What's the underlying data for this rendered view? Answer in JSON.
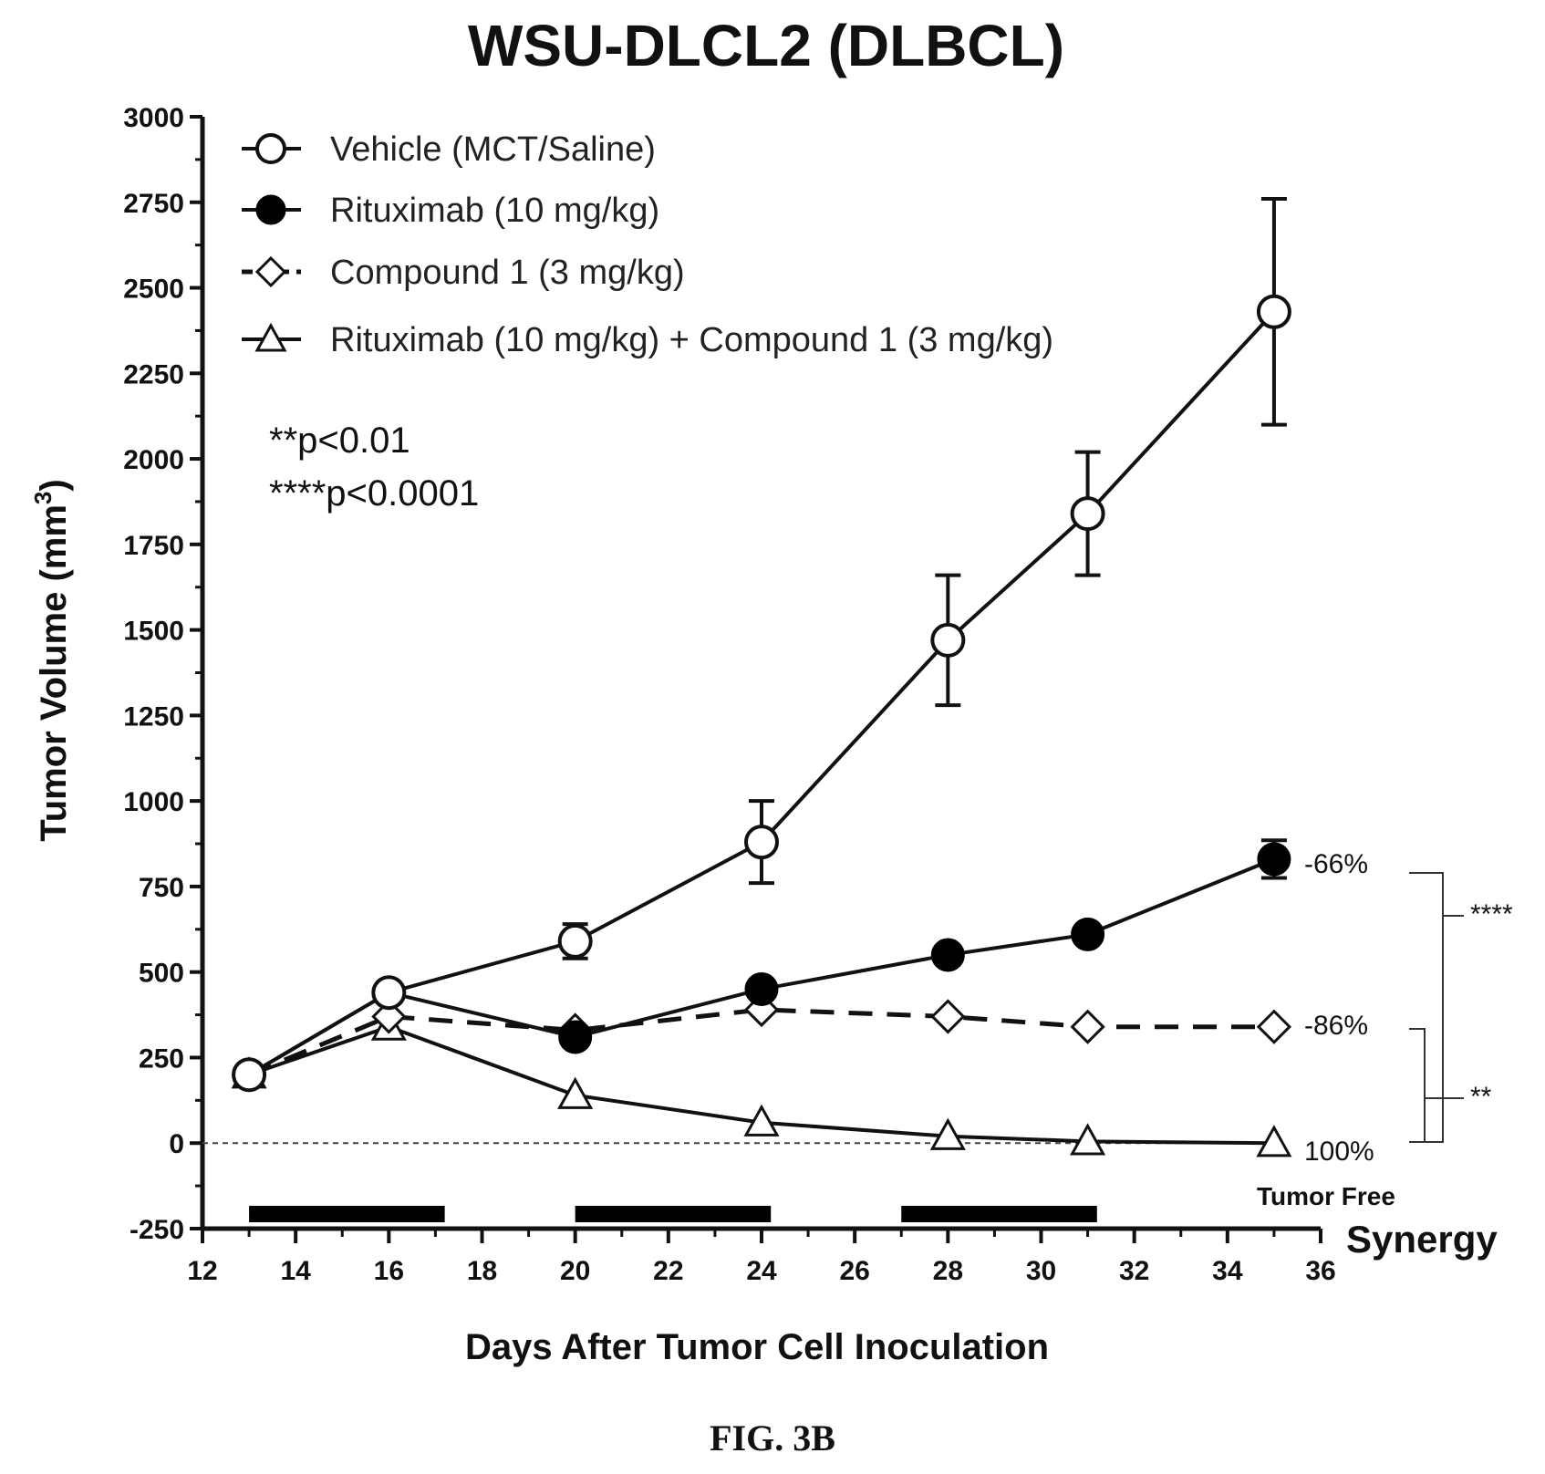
{
  "chart_data": {
    "type": "line",
    "title": "WSU-DLCL2 (DLBCL)",
    "xlabel": "Days After Tumor Cell Inoculation",
    "ylabel": "Tumor Volume (mm",
    "ylabel_sup": "3",
    "ylabel_close": ")",
    "xlim": [
      12,
      36
    ],
    "ylim": [
      -250,
      3000
    ],
    "x_ticks": [
      "12",
      "14",
      "16",
      "18",
      "20",
      "22",
      "24",
      "26",
      "28",
      "30",
      "32",
      "34",
      "36"
    ],
    "y_ticks": [
      "-250",
      "0",
      "250",
      "500",
      "750",
      "1000",
      "1250",
      "1500",
      "1750",
      "2000",
      "2250",
      "2500",
      "2750",
      "3000"
    ],
    "legend_position": "top-left",
    "series": [
      {
        "name": "Vehicle (MCT/Saline)",
        "marker": "open-circle",
        "line": "solid",
        "x": [
          13,
          16,
          20,
          24,
          28,
          31,
          35
        ],
        "y": [
          200,
          440,
          590,
          880,
          1470,
          1840,
          2430
        ],
        "err": [
          10,
          20,
          50,
          120,
          190,
          180,
          330
        ]
      },
      {
        "name": "Rituximab (10 mg/kg)",
        "marker": "filled-circle",
        "line": "solid",
        "x": [
          13,
          16,
          20,
          24,
          28,
          31,
          35
        ],
        "y": [
          200,
          440,
          310,
          450,
          550,
          610,
          830
        ],
        "err": [
          10,
          15,
          15,
          15,
          15,
          15,
          55
        ]
      },
      {
        "name": "Compound 1 (3 mg/kg)",
        "marker": "open-diamond",
        "line": "dashed",
        "x": [
          13,
          16,
          20,
          24,
          28,
          31,
          35
        ],
        "y": [
          200,
          370,
          330,
          390,
          370,
          340,
          340
        ],
        "err": [
          0,
          0,
          0,
          0,
          0,
          0,
          0
        ]
      },
      {
        "name": "Rituximab (10 mg/kg) + Compound 1 (3 mg/kg)",
        "marker": "open-triangle",
        "line": "solid",
        "x": [
          13,
          16,
          20,
          24,
          28,
          31,
          35
        ],
        "y": [
          200,
          340,
          140,
          60,
          20,
          5,
          0
        ],
        "err": [
          0,
          0,
          0,
          0,
          0,
          0,
          0
        ]
      }
    ],
    "reference_line_y": 0,
    "dosing_bars": [
      [
        13,
        17.2
      ],
      [
        20,
        24.2
      ],
      [
        27,
        31.2
      ]
    ],
    "annotations": {
      "pvalues": [
        "**p<0.01",
        "****p<0.0001"
      ],
      "pct_rituximab": "-66%",
      "pct_compound": "-86%",
      "pct_combo": "100%",
      "tumor_free": "Tumor Free",
      "sig_upper": "****",
      "sig_lower": "**",
      "synergy": "Synergy"
    },
    "figure_label": "FIG. 3B"
  }
}
